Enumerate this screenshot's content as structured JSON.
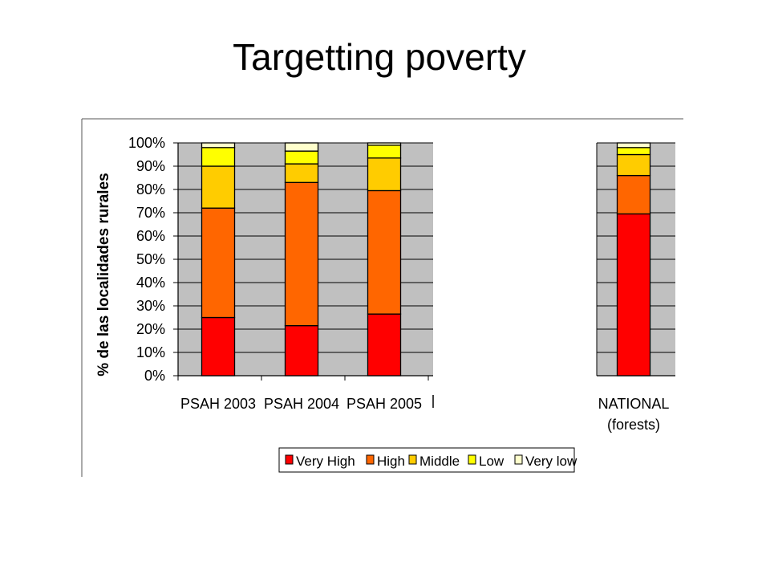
{
  "slide": {
    "title": "Targetting poverty"
  },
  "chart_data": {
    "type": "bar",
    "stacked": true,
    "ylabel": "% de las localidades rurales",
    "xlabel": "",
    "title": "",
    "yticks": [
      "0%",
      "10%",
      "20%",
      "30%",
      "40%",
      "50%",
      "60%",
      "70%",
      "80%",
      "90%",
      "100%"
    ],
    "ylim": [
      0,
      100
    ],
    "grid": true,
    "legend_position": "bottom",
    "categories": [
      "PSAH 2003",
      "PSAH 2004",
      "PSAH 2005",
      "NATIONAL (forests)"
    ],
    "category_lines": [
      [
        "PSAH 2003"
      ],
      [
        "PSAH 2004"
      ],
      [
        "PSAH 2005"
      ],
      [
        "NATIONAL",
        "(forests)"
      ]
    ],
    "series": [
      {
        "name": "Very High",
        "color": "#ff0000",
        "values": [
          25,
          21.5,
          26.5,
          69.5
        ]
      },
      {
        "name": "High",
        "color": "#ff6600",
        "values": [
          47,
          61.5,
          53,
          16.5
        ]
      },
      {
        "name": "Middle",
        "color": "#ffcc00",
        "values": [
          18,
          8,
          14,
          9
        ]
      },
      {
        "name": "Low",
        "color": "#ffff00",
        "values": [
          8,
          5.5,
          5.5,
          3
        ]
      },
      {
        "name": "Very low",
        "color": "#ffffcc",
        "values": [
          2,
          3.5,
          1,
          2
        ]
      }
    ]
  }
}
